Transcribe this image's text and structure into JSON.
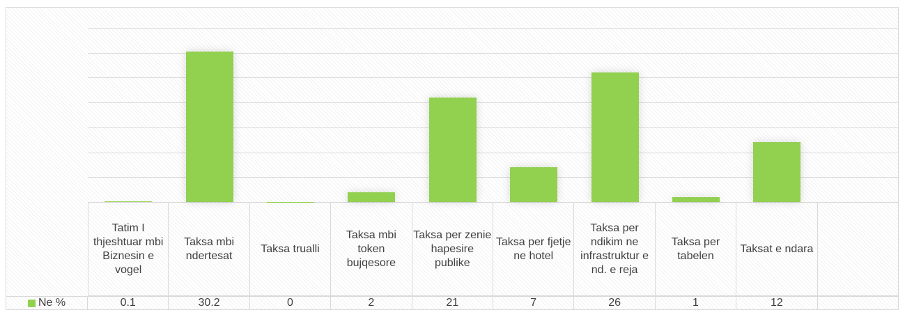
{
  "chart_data": {
    "type": "bar",
    "categories": [
      "Tatim I thjeshtuar mbi Biznesin e vogel",
      "Taksa mbi ndertesat",
      "Taksa trualli",
      "Taksa mbi token bujqesore",
      "Taksa per zenie hapesire publike",
      "Taksa per fjetje ne hotel",
      "Taksa per ndikim ne infrastruktur e nd. e reja",
      "Taksa per tabelen",
      "Taksat e ndara",
      null
    ],
    "series": [
      {
        "name": "Ne %",
        "color": "#92d050",
        "values": [
          0.1,
          30.2,
          0,
          2,
          21,
          7,
          26,
          1,
          12,
          null
        ]
      }
    ],
    "ylim": [
      0,
      35
    ],
    "yticks": [
      0,
      5,
      10,
      15,
      20,
      25,
      30,
      35
    ],
    "grid": true
  }
}
